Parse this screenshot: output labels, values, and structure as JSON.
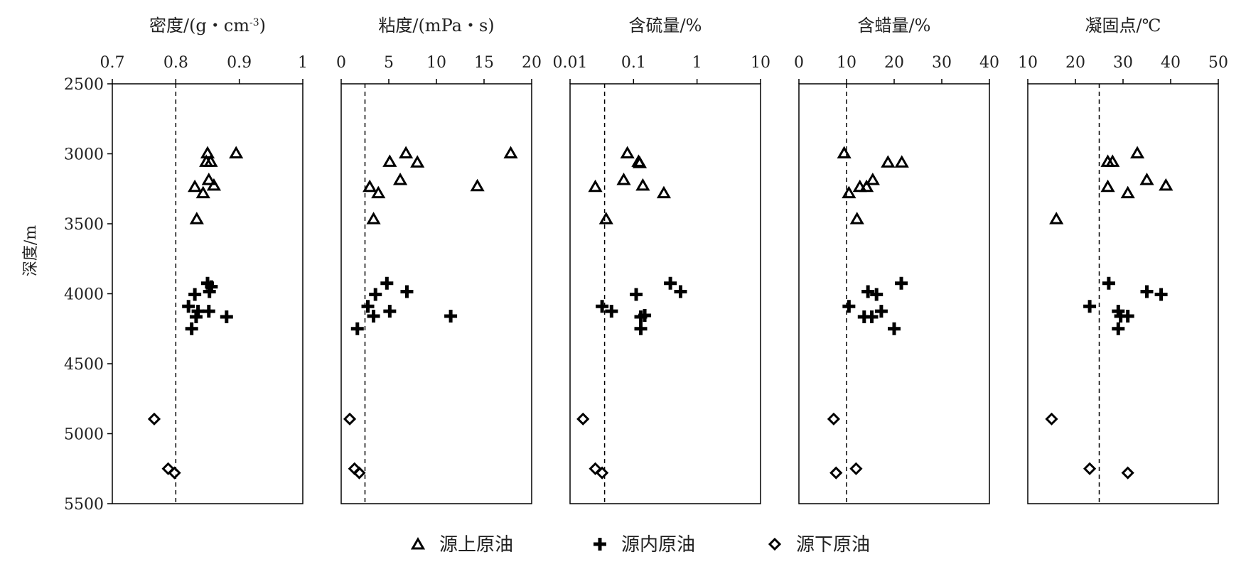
{
  "chart_data": {
    "type": "scatter",
    "y_axis": {
      "label": "深度/m",
      "ylim": [
        2500,
        5500
      ],
      "ticks": [
        "2500",
        "3000",
        "3500",
        "4000",
        "4500",
        "5000",
        "5500"
      ],
      "tick_values": [
        2500,
        3000,
        3500,
        4000,
        4500,
        5000,
        5500
      ],
      "inverted": true
    },
    "legend": {
      "placement": "bottom-center",
      "entries": [
        {
          "id": "upper",
          "label": "源上原油",
          "marker": "triangle"
        },
        {
          "id": "inner",
          "label": "源内原油",
          "marker": "plus"
        },
        {
          "id": "lower",
          "label": "源下原油",
          "marker": "diamond"
        }
      ]
    },
    "panels": [
      {
        "id": "density",
        "title": "密度/(g・cm",
        "title_sup": "-3",
        "title_end": ")",
        "scale": "linear",
        "xlim": [
          0.7,
          1.0
        ],
        "ticks": [
          "0.7",
          "0.8",
          "0.9",
          "1"
        ],
        "tick_values": [
          0.7,
          0.8,
          0.9,
          1.0
        ],
        "reference_line": 0.8,
        "series": [
          {
            "id": "upper",
            "points": [
              [
                0.85,
                2995
              ],
              [
                0.895,
                2995
              ],
              [
                0.848,
                3055
              ],
              [
                0.855,
                3055
              ],
              [
                0.852,
                3185
              ],
              [
                0.83,
                3235
              ],
              [
                0.86,
                3225
              ],
              [
                0.843,
                3280
              ],
              [
                0.833,
                3465
              ]
            ]
          },
          {
            "id": "inner",
            "points": [
              [
                0.85,
                3925
              ],
              [
                0.856,
                3950
              ],
              [
                0.853,
                3985
              ],
              [
                0.83,
                4005
              ],
              [
                0.82,
                4090
              ],
              [
                0.835,
                4125
              ],
              [
                0.852,
                4125
              ],
              [
                0.832,
                4165
              ],
              [
                0.88,
                4165
              ],
              [
                0.825,
                4250
              ]
            ]
          },
          {
            "id": "lower",
            "points": [
              [
                0.766,
                4895
              ],
              [
                0.788,
                5250
              ],
              [
                0.798,
                5280
              ]
            ]
          }
        ]
      },
      {
        "id": "viscosity",
        "title": "粘度/(mPa・s)",
        "title_sup": "",
        "title_end": "",
        "scale": "linear",
        "xlim": [
          0,
          20
        ],
        "ticks": [
          "0",
          "5",
          "10",
          "15",
          "20"
        ],
        "tick_values": [
          0,
          5,
          10,
          15,
          20
        ],
        "reference_line": 2.5,
        "series": [
          {
            "id": "upper",
            "points": [
              [
                6.8,
                2995
              ],
              [
                17.8,
                2995
              ],
              [
                5.1,
                3055
              ],
              [
                8.0,
                3060
              ],
              [
                6.2,
                3185
              ],
              [
                3.0,
                3235
              ],
              [
                14.3,
                3230
              ],
              [
                3.9,
                3280
              ],
              [
                3.4,
                3465
              ]
            ]
          },
          {
            "id": "inner",
            "points": [
              [
                4.8,
                3925
              ],
              [
                6.9,
                3985
              ],
              [
                3.6,
                4005
              ],
              [
                2.8,
                4090
              ],
              [
                3.4,
                4160
              ],
              [
                5.1,
                4125
              ],
              [
                11.5,
                4160
              ],
              [
                1.7,
                4250
              ]
            ]
          },
          {
            "id": "lower",
            "points": [
              [
                0.9,
                4895
              ],
              [
                1.4,
                5250
              ],
              [
                1.9,
                5280
              ]
            ]
          }
        ]
      },
      {
        "id": "sulfur",
        "title": "含硫量/%",
        "title_sup": "",
        "title_end": "",
        "scale": "log",
        "xlim": [
          0.01,
          10
        ],
        "ticks": [
          "0.01",
          "0.1",
          "1",
          "10"
        ],
        "tick_values": [
          0.01,
          0.1,
          1,
          10
        ],
        "reference_line": 0.035,
        "series": [
          {
            "id": "upper",
            "points": [
              [
                0.08,
                2995
              ],
              [
                0.12,
                3055
              ],
              [
                0.125,
                3065
              ],
              [
                0.07,
                3185
              ],
              [
                0.025,
                3235
              ],
              [
                0.14,
                3225
              ],
              [
                0.3,
                3280
              ],
              [
                0.037,
                3465
              ]
            ]
          },
          {
            "id": "inner",
            "points": [
              [
                0.38,
                3925
              ],
              [
                0.55,
                3985
              ],
              [
                0.11,
                4005
              ],
              [
                0.032,
                4090
              ],
              [
                0.045,
                4125
              ],
              [
                0.13,
                4165
              ],
              [
                0.15,
                4155
              ],
              [
                0.13,
                4250
              ]
            ]
          },
          {
            "id": "lower",
            "points": [
              [
                0.016,
                4895
              ],
              [
                0.025,
                5250
              ],
              [
                0.032,
                5280
              ]
            ]
          }
        ]
      },
      {
        "id": "wax",
        "title": "含蜡量/%",
        "title_sup": "",
        "title_end": "",
        "scale": "linear",
        "xlim": [
          0,
          40
        ],
        "ticks": [
          "0",
          "10",
          "20",
          "30",
          "40"
        ],
        "tick_values": [
          0,
          10,
          20,
          30,
          40
        ],
        "reference_line": 10,
        "series": [
          {
            "id": "upper",
            "points": [
              [
                9.5,
                2995
              ],
              [
                18.7,
                3060
              ],
              [
                21.6,
                3060
              ],
              [
                15.5,
                3185
              ],
              [
                12.8,
                3235
              ],
              [
                14.2,
                3235
              ],
              [
                10.5,
                3280
              ],
              [
                12.2,
                3465
              ]
            ]
          },
          {
            "id": "inner",
            "points": [
              [
                21.5,
                3925
              ],
              [
                14.5,
                3985
              ],
              [
                16.3,
                4005
              ],
              [
                10.5,
                4090
              ],
              [
                17.3,
                4125
              ],
              [
                13.7,
                4165
              ],
              [
                15.3,
                4165
              ],
              [
                20.0,
                4250
              ]
            ]
          },
          {
            "id": "lower",
            "points": [
              [
                7.3,
                4895
              ],
              [
                12.0,
                5250
              ],
              [
                7.8,
                5280
              ]
            ]
          }
        ]
      },
      {
        "id": "pour_point",
        "title": "凝固点/℃",
        "title_sup": "",
        "title_end": "",
        "scale": "linear",
        "xlim": [
          10,
          50
        ],
        "ticks": [
          "10",
          "20",
          "30",
          "40",
          "50"
        ],
        "tick_values": [
          10,
          20,
          30,
          40,
          50
        ],
        "reference_line": 25,
        "series": [
          {
            "id": "upper",
            "points": [
              [
                33,
                2995
              ],
              [
                26.8,
                3055
              ],
              [
                27.8,
                3055
              ],
              [
                35,
                3185
              ],
              [
                26.8,
                3235
              ],
              [
                39,
                3225
              ],
              [
                31,
                3280
              ],
              [
                16,
                3465
              ]
            ]
          },
          {
            "id": "inner",
            "points": [
              [
                27,
                3925
              ],
              [
                35,
                3985
              ],
              [
                38,
                4005
              ],
              [
                23,
                4090
              ],
              [
                29,
                4125
              ],
              [
                31,
                4160
              ],
              [
                29.5,
                4160
              ],
              [
                29,
                4250
              ]
            ]
          },
          {
            "id": "lower",
            "points": [
              [
                15,
                4895
              ],
              [
                23,
                5250
              ],
              [
                31,
                5280
              ]
            ]
          }
        ]
      }
    ]
  }
}
